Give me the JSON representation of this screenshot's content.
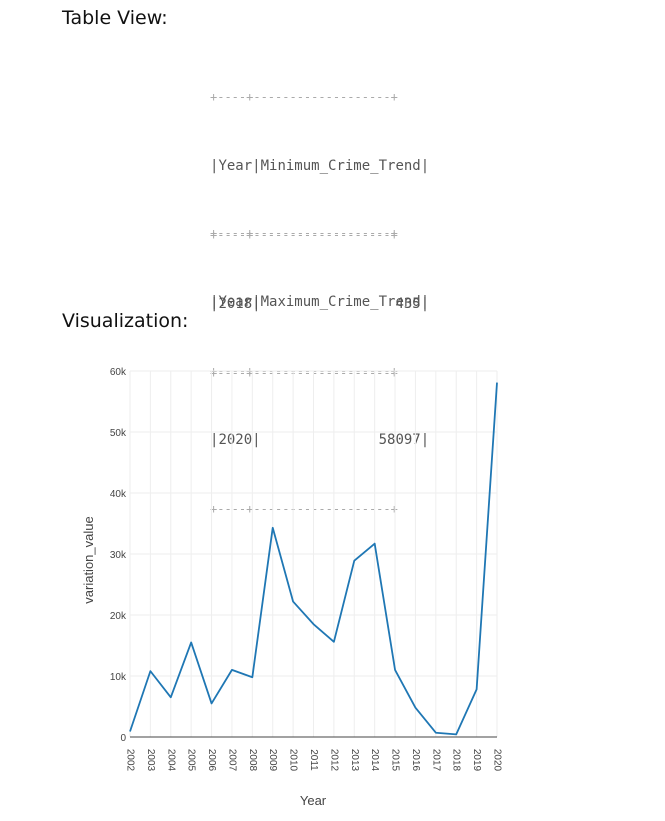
{
  "headings": {
    "table_view": "Table View:",
    "visualization": "Visualization:"
  },
  "tables": {
    "minimum": {
      "columns": [
        "Year",
        "Minimum_Crime_Trend"
      ],
      "row": [
        "2018",
        "435"
      ]
    },
    "maximum": {
      "columns": [
        "Year",
        "Maximum_Crime_Trend"
      ],
      "row": [
        "2020",
        "58097"
      ]
    }
  },
  "chart_data": {
    "type": "line",
    "title": "",
    "xlabel": "Year",
    "ylabel": "variation_value",
    "x": [
      2002,
      2003,
      2004,
      2005,
      2006,
      2007,
      2008,
      2009,
      2010,
      2011,
      2012,
      2013,
      2014,
      2015,
      2016,
      2017,
      2018,
      2019,
      2020
    ],
    "series": [
      {
        "values": [
          900,
          10800,
          6500,
          15500,
          5500,
          11000,
          9800,
          34300,
          22200,
          18500,
          15600,
          28900,
          31700,
          11000,
          4800,
          700,
          435,
          7800,
          58097
        ]
      }
    ],
    "ylim": [
      0,
      60000
    ],
    "yticks": [
      0,
      10000,
      20000,
      30000,
      40000,
      50000,
      60000
    ],
    "ytick_labels": [
      "0",
      "10k",
      "20k",
      "30k",
      "40k",
      "50k",
      "60k"
    ],
    "grid": true,
    "line_color": "#1f77b4"
  }
}
